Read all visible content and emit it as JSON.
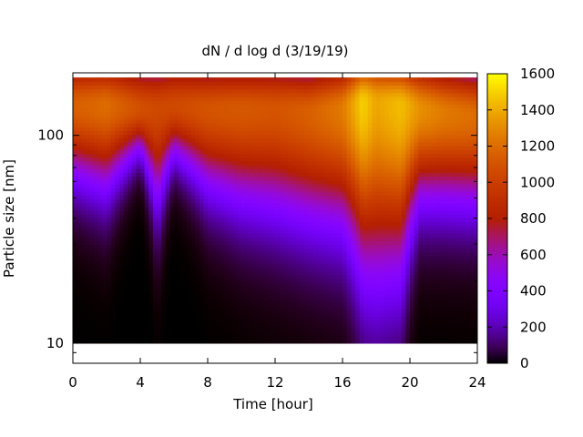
{
  "chart_data": {
    "type": "heatmap",
    "title": "dN / d log d (3/19/19)",
    "xlabel": "Time [hour]",
    "ylabel": "Particle size [nm]",
    "x_scale": "linear",
    "y_scale": "log",
    "xlim": [
      0,
      24
    ],
    "ylim": [
      8,
      200
    ],
    "x_ticks": [
      0,
      4,
      8,
      12,
      16,
      20,
      24
    ],
    "x_tick_labels": [
      "0",
      "4",
      "8",
      "12",
      "16",
      "20",
      "24"
    ],
    "y_ticks": [
      10,
      100
    ],
    "y_tick_labels": [
      "10",
      "100"
    ],
    "colorbar": {
      "range": [
        0,
        1600
      ],
      "ticks": [
        0,
        200,
        400,
        600,
        800,
        1000,
        1200,
        1400,
        1600
      ],
      "tick_labels": [
        "0",
        "200",
        "400",
        "600",
        "800",
        "1000",
        "1200",
        "1400",
        "1600"
      ],
      "colormap": "gnuplot",
      "stops": [
        "#000000",
        "#4b0082",
        "#8b00ff",
        "#c0107a",
        "#ff3000",
        "#ff8000",
        "#ffc000",
        "#ffff00"
      ]
    },
    "grid": false,
    "time_hours": [
      0,
      2,
      4,
      5,
      6,
      8,
      10,
      12,
      14,
      16,
      17.2,
      18,
      19.5,
      20.6,
      22,
      24
    ],
    "mode_diameter_nm": [
      140,
      140,
      135,
      135,
      140,
      135,
      135,
      135,
      130,
      135,
      145,
      145,
      140,
      135,
      130,
      125
    ],
    "peak_concentration": [
      1150,
      1200,
      1080,
      1050,
      1050,
      1100,
      1120,
      1100,
      1150,
      1250,
      1500,
      1380,
      1450,
      1320,
      1250,
      1200
    ],
    "lower_edge_nm": [
      58,
      50,
      80,
      40,
      75,
      50,
      42,
      38,
      34,
      32,
      20,
      18,
      20,
      45,
      44,
      42
    ],
    "min_size_cutoff_nm": 10,
    "max_size_nm": 190
  }
}
